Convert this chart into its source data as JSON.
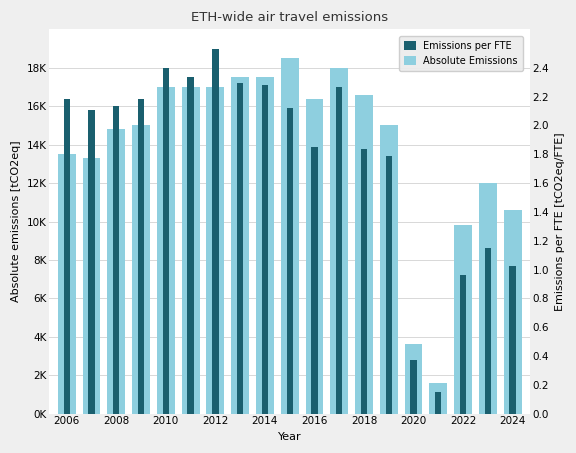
{
  "title": "ETH-wide air travel emissions",
  "years": [
    2006,
    2007,
    2008,
    2009,
    2010,
    2011,
    2012,
    2013,
    2014,
    2015,
    2016,
    2017,
    2018,
    2019,
    2020,
    2021,
    2022,
    2023,
    2024
  ],
  "absolute_emissions": [
    13500,
    13300,
    14800,
    15000,
    17000,
    17000,
    17000,
    17500,
    17500,
    18500,
    16400,
    18000,
    16600,
    15000,
    3600,
    1600,
    9800,
    12000,
    10600
  ],
  "emissions_per_fte_scaled": [
    16400,
    15800,
    16000,
    16400,
    18000,
    17500,
    19000,
    17200,
    17100,
    15900,
    13900,
    17000,
    13800,
    13400,
    2800,
    1100,
    7200,
    8600,
    7700
  ],
  "bar_color_absolute": "#8ECFDF",
  "bar_color_fte": "#1a5f6e",
  "ylabel_left": "Absolute emissions [tCO2eq]",
  "ylabel_right": "Emissions per FTE [tCO2eq/FTE]",
  "xlabel": "Year",
  "ylim_left": [
    0,
    20000
  ],
  "ylim_right": [
    0,
    2.6667
  ],
  "yticks_left": [
    0,
    2000,
    4000,
    6000,
    8000,
    10000,
    12000,
    14000,
    16000,
    18000
  ],
  "ytick_labels_left": [
    "0K",
    "2K",
    "4K",
    "6K",
    "8K",
    "10K",
    "12K",
    "14K",
    "16K",
    "18K"
  ],
  "yticks_right": [
    0.0,
    0.2,
    0.4,
    0.6,
    0.8,
    1.0,
    1.2,
    1.4,
    1.6,
    1.8,
    2.0,
    2.2,
    2.4
  ],
  "bar_width": 0.72,
  "background_color": "#efefef",
  "plot_background": "#ffffff",
  "legend_labels": [
    "Emissions per FTE",
    "Absolute Emissions"
  ],
  "grid_color": "#d8d8d8",
  "title_fontsize": 9.5,
  "axis_fontsize": 8,
  "tick_fontsize": 7.5
}
